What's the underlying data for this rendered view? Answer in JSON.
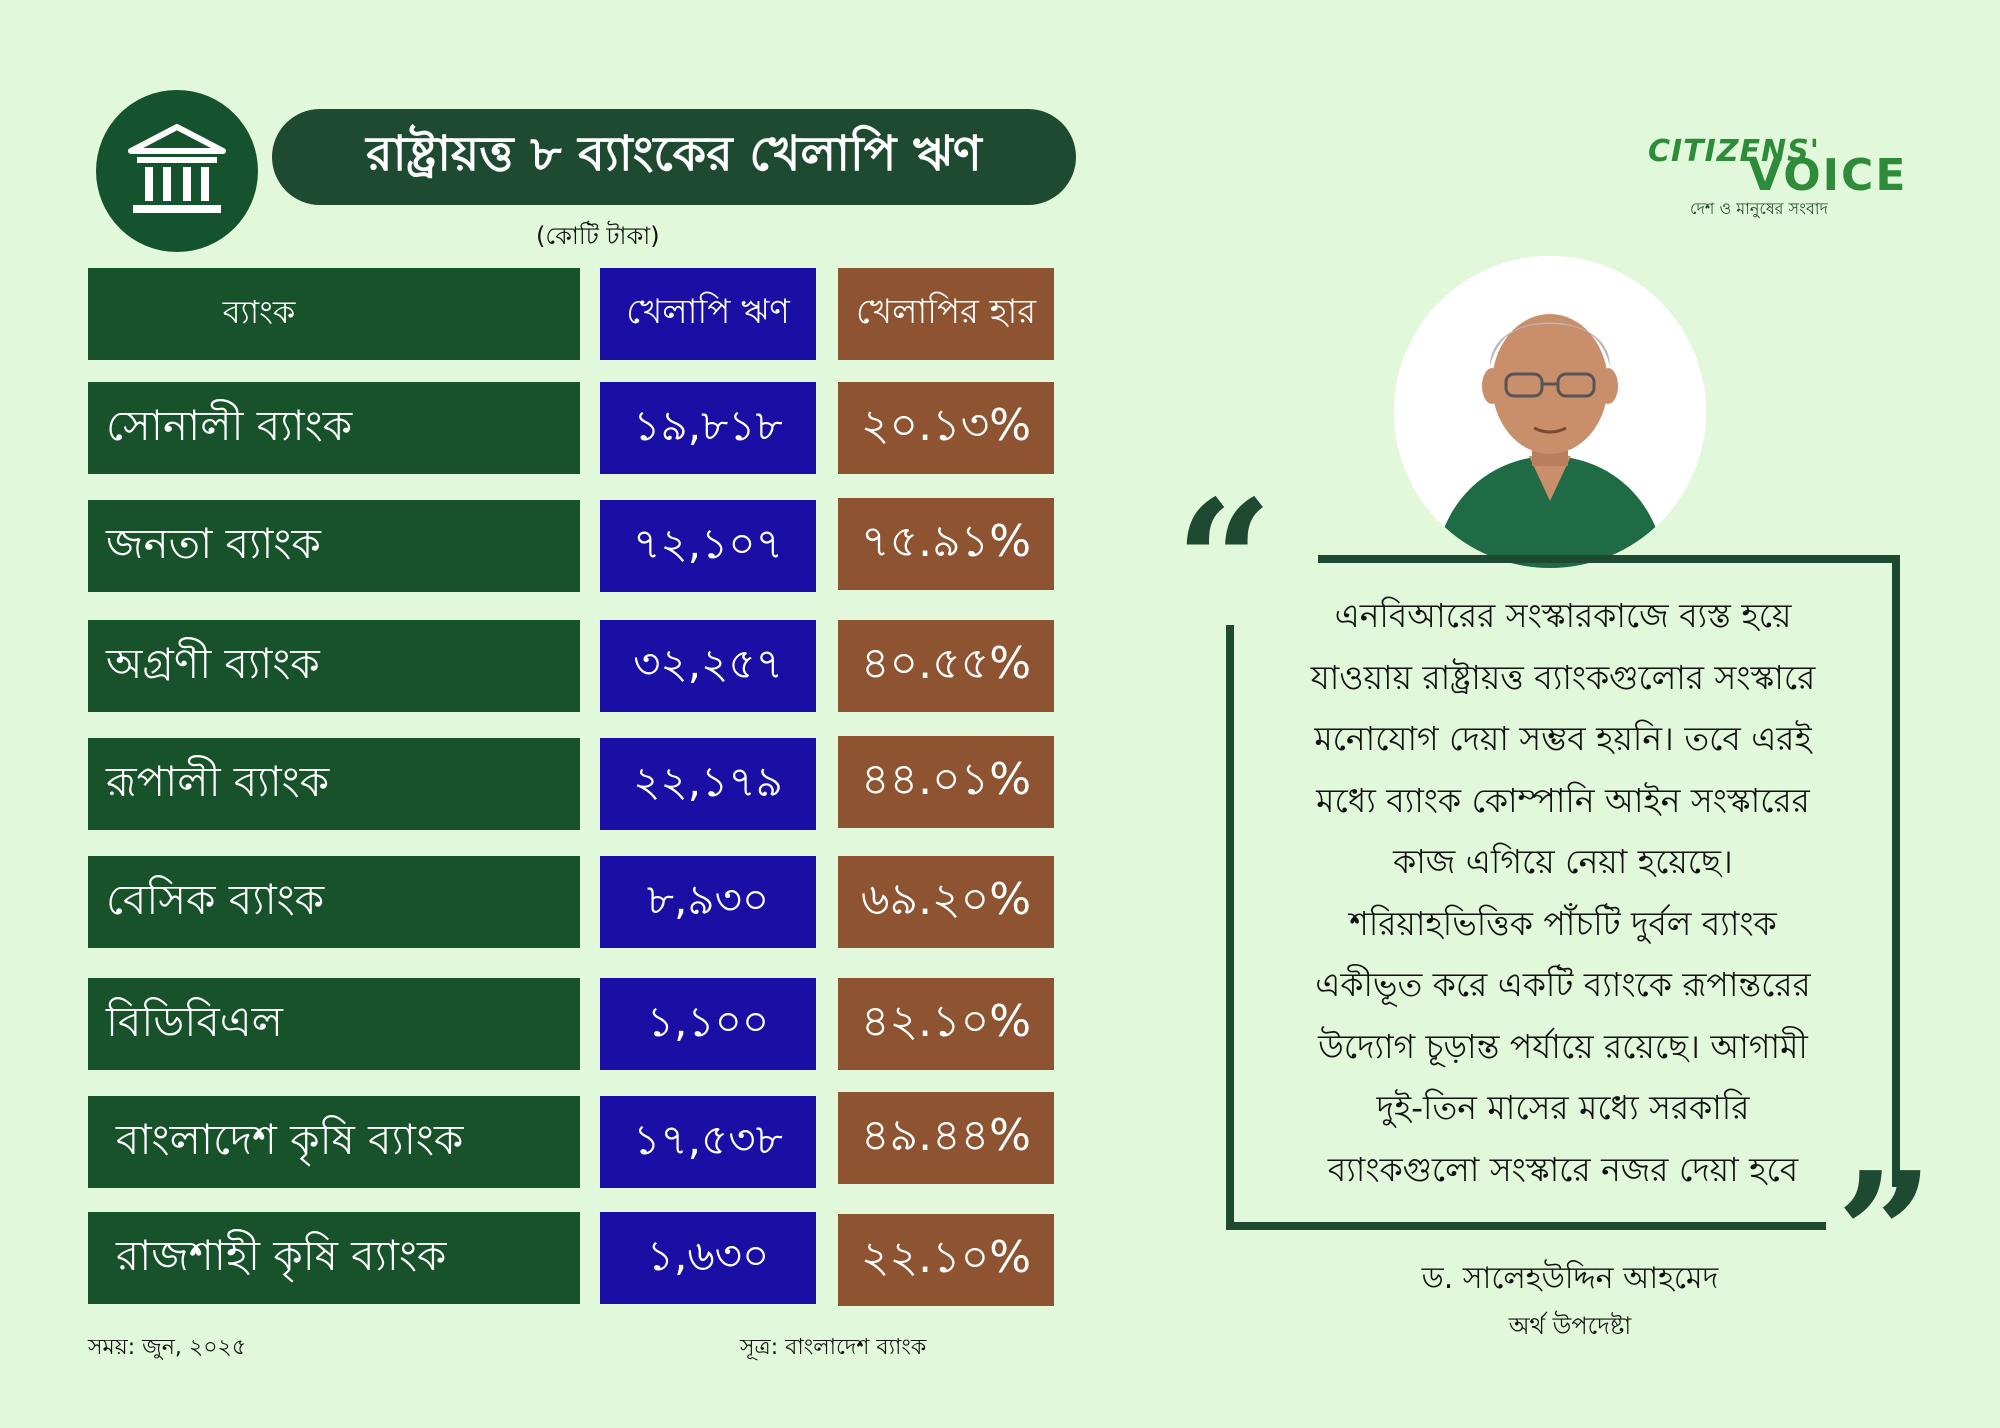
{
  "header": {
    "icon": "bank-building-icon",
    "title": "রাষ্ট্রায়ত্ত ৮ ব্যাংকের খেলাপি ঋণ",
    "unit": "(কোটি টাকা)"
  },
  "table": {
    "columns": [
      "ব্যাংক",
      "খেলাপি ঋণ",
      "খেলাপির হার"
    ],
    "rows": [
      {
        "bank": "সোনালী ব্যাংক",
        "loan": "১৯,৮১৮",
        "rate": "২০.১৩%"
      },
      {
        "bank": "জনতা ব্যাংক",
        "loan": "৭২,১০৭",
        "rate": "৭৫.৯১%"
      },
      {
        "bank": "অগ্রণী ব্যাংক",
        "loan": "৩২,২৫৭",
        "rate": "৪০.৫৫%"
      },
      {
        "bank": "রূপালী ব্যাংক",
        "loan": "২২,১৭৯",
        "rate": "৪৪.০১%"
      },
      {
        "bank": "বেসিক ব্যাংক",
        "loan": "৮,৯৩০",
        "rate": "৬৯.২০%"
      },
      {
        "bank": "বিডিবিএল",
        "loan": "১,১০০",
        "rate": "৪২.১০%"
      },
      {
        "bank": "বাংলাদেশ কৃষি ব্যাংক",
        "loan": "১৭,৫৩৮",
        "rate": "৪৯.৪৪%"
      },
      {
        "bank": "রাজশাহী কৃষি ব্যাংক",
        "loan": "১,৬৩০",
        "rate": "২২.১০%"
      }
    ]
  },
  "footer": {
    "time": "সময়: জুন, ২০২৫",
    "source": "সূত্র: বাংলাদেশ ব্যাংক"
  },
  "logo": {
    "line1": "CITIZENS'",
    "line2": "VOICE",
    "tagline": "দেশ ও মানুষের সংবাদ"
  },
  "quote": {
    "lines": [
      "এনবিআরের সংস্কারকাজে ব্যস্ত হয়ে",
      "যাওয়ায় রাষ্ট্রায়ত্ত ব্যাংকগুলোর সংস্কারে",
      "মনোযোগ দেয়া সম্ভব হয়নি। তবে এরই",
      "মধ্যে ব্যাংক কোম্পানি আইন সংস্কারের",
      "কাজ এগিয়ে নেয়া হয়েছে।",
      "শরিয়াহভিত্তিক পাঁচটি দুর্বল ব্যাংক",
      "একীভূত করে একটি ব্যাংকে রূপান্তরের",
      "উদ্যোগ চূড়ান্ত পর্যায়ে রয়েছে। আগামী",
      "দুই-তিন মাসের মধ্যে সরকারি",
      "ব্যাংকগুলো সংস্কারে নজর দেয়া হবে"
    ],
    "author": "ড. সালেহউদ্দিন আহমেদ",
    "designation": "অর্থ উপদেষ্টা"
  },
  "colors": {
    "background": "#e2f8da",
    "dark_green": "#17522a",
    "blue": "#1b0ea5",
    "brown": "#8e5331"
  }
}
